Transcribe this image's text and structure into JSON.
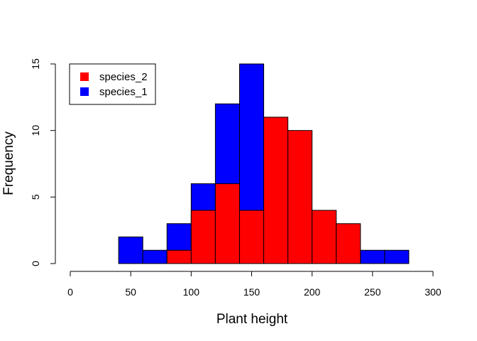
{
  "chart_data": {
    "type": "bar",
    "title": "",
    "xlabel": "Plant height",
    "ylabel": "Frequency",
    "xlim": [
      0,
      300
    ],
    "ylim": [
      0,
      15
    ],
    "x_ticks": [
      "0",
      "50",
      "100",
      "150",
      "200",
      "250",
      "300"
    ],
    "y_ticks": [
      "0",
      "5",
      "10",
      "15"
    ],
    "grid": false,
    "legend_position": "top-left",
    "bins": [
      [
        40,
        60
      ],
      [
        60,
        80
      ],
      [
        80,
        100
      ],
      [
        100,
        120
      ],
      [
        120,
        140
      ],
      [
        140,
        160
      ],
      [
        160,
        180
      ],
      [
        180,
        200
      ],
      [
        200,
        220
      ],
      [
        220,
        240
      ],
      [
        240,
        260
      ],
      [
        260,
        280
      ]
    ],
    "series": [
      {
        "name": "species_1",
        "color": "#0000ff",
        "values": [
          2,
          1,
          3,
          6,
          12,
          15,
          0,
          0,
          0,
          0,
          1,
          1
        ]
      },
      {
        "name": "species_2",
        "color": "#ff0000",
        "values": [
          0,
          0,
          1,
          4,
          6,
          4,
          11,
          10,
          4,
          3,
          0,
          0
        ]
      }
    ],
    "legend": [
      {
        "label": "species_2",
        "color": "#ff0000"
      },
      {
        "label": "species_1",
        "color": "#0000ff"
      }
    ]
  }
}
